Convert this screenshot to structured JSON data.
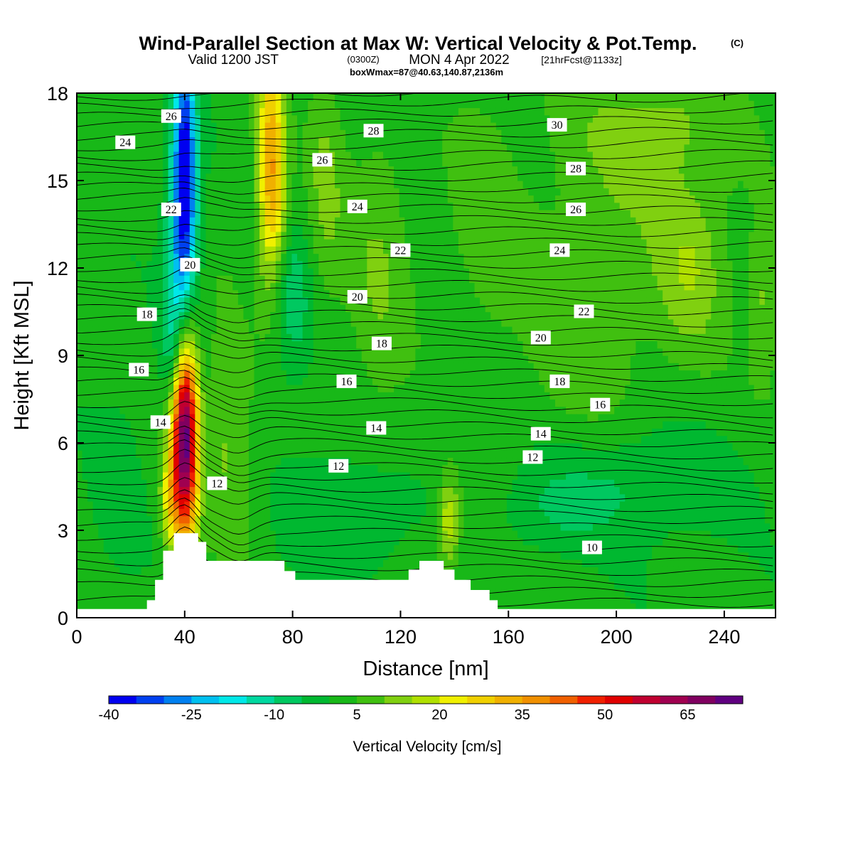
{
  "title": {
    "main": "Wind-Parallel Section at Max W: Vertical Velocity & Pot.Temp.",
    "copyright": "(C)",
    "valid_prefix": "Valid 1200 JST",
    "valid_utc": "(0300Z)",
    "valid_date": "MON 4 Apr 2022",
    "forecast": "[21hrFcst@1133z]",
    "box": "boxWmax=87@40.63,140.87,2136m"
  },
  "chart_data": {
    "type": "heatmap",
    "xlabel": "Distance [nm]",
    "ylabel": "Height [Kft MSL]",
    "xlim": [
      0,
      259
    ],
    "ylim": [
      0,
      18
    ],
    "x_ticks": [
      0,
      40,
      80,
      120,
      160,
      200,
      240
    ],
    "y_ticks": [
      0,
      3,
      6,
      9,
      12,
      15,
      18
    ],
    "colorbar": {
      "title": "Vertical Velocity [cm/s]",
      "levels_min": -40,
      "levels_step": 5,
      "tick_labels": [
        "-40",
        "-25",
        "-10",
        "5",
        "20",
        "35",
        "50",
        "65"
      ],
      "tick_values": [
        -40,
        -25,
        -10,
        5,
        20,
        35,
        50,
        65
      ],
      "colors": [
        "#0000f0",
        "#0040f0",
        "#0080f0",
        "#00c0f0",
        "#00e8e8",
        "#00d8a0",
        "#00c860",
        "#00b830",
        "#18b818",
        "#40c010",
        "#80d010",
        "#b0e000",
        "#f0f000",
        "#f0d000",
        "#f0b000",
        "#f09000",
        "#f06000",
        "#f02000",
        "#e00000",
        "#c00030",
        "#a00050",
        "#800060",
        "#600080"
      ]
    },
    "terrain": [
      [
        0,
        0.3
      ],
      [
        26,
        0.3
      ],
      [
        26,
        0.6
      ],
      [
        29,
        0.6
      ],
      [
        29,
        1.3
      ],
      [
        32,
        1.3
      ],
      [
        32,
        2.3
      ],
      [
        36,
        2.3
      ],
      [
        36,
        2.9
      ],
      [
        45,
        2.9
      ],
      [
        45,
        2.6
      ],
      [
        48,
        2.6
      ],
      [
        48,
        1.95
      ],
      [
        77,
        1.95
      ],
      [
        77,
        1.6
      ],
      [
        81,
        1.6
      ],
      [
        81,
        1.3
      ],
      [
        123,
        1.3
      ],
      [
        123,
        1.65
      ],
      [
        127,
        1.65
      ],
      [
        127,
        1.95
      ],
      [
        136,
        1.95
      ],
      [
        136,
        1.65
      ],
      [
        140,
        1.65
      ],
      [
        140,
        1.3
      ],
      [
        146,
        1.3
      ],
      [
        146,
        0.95
      ],
      [
        153,
        0.95
      ],
      [
        153,
        0.6
      ],
      [
        156,
        0.6
      ],
      [
        156,
        0.3
      ],
      [
        259,
        0.3
      ]
    ],
    "features": [
      {
        "x": 40,
        "y": 6.2,
        "sx": 3.5,
        "sy": 2.6,
        "w": 72
      },
      {
        "x": 34,
        "y": 4.0,
        "sx": 2.5,
        "sy": 1.2,
        "w": 15
      },
      {
        "x": 72,
        "y": 16.5,
        "sx": 3.5,
        "sy": 3.0,
        "w": 25
      },
      {
        "x": 73,
        "y": 14.0,
        "sx": 4.0,
        "sy": 2.0,
        "w": 14
      },
      {
        "x": 138,
        "y": 3.3,
        "sx": 3.0,
        "sy": 1.1,
        "w": 18
      },
      {
        "x": 40,
        "y": 16.0,
        "sx": 3.0,
        "sy": 2.8,
        "w": -35
      },
      {
        "x": 39,
        "y": 12.5,
        "sx": 4.0,
        "sy": 2.5,
        "w": -22
      },
      {
        "x": 36,
        "y": 9.0,
        "sx": 3.0,
        "sy": 1.5,
        "w": -14
      },
      {
        "x": 80,
        "y": 11.0,
        "sx": 5.0,
        "sy": 2.0,
        "w": -10
      },
      {
        "x": 205,
        "y": 4.6,
        "sx": 25.0,
        "sy": 1.4,
        "w": -8
      },
      {
        "x": 175,
        "y": 3.6,
        "sx": 12.0,
        "sy": 1.0,
        "w": -5
      },
      {
        "x": 95,
        "y": 3.8,
        "sx": 12.0,
        "sy": 1.5,
        "w": -6
      },
      {
        "x": 110,
        "y": 3.2,
        "sx": 8.0,
        "sy": 1.2,
        "w": -5
      },
      {
        "x": 15,
        "y": 4.5,
        "sx": 6.0,
        "sy": 2.0,
        "w": -5
      },
      {
        "x": 112,
        "y": 12.0,
        "sx": 9.0,
        "sy": 4.0,
        "w": 8
      },
      {
        "x": 92,
        "y": 15.0,
        "sx": 5.0,
        "sy": 3.0,
        "w": 9
      },
      {
        "x": 215,
        "y": 17.0,
        "sx": 20.0,
        "sy": 1.5,
        "w": 7
      },
      {
        "x": 205,
        "y": 13.5,
        "sx": 30.0,
        "sy": 4.0,
        "w": 6
      },
      {
        "x": 228,
        "y": 12.0,
        "sx": 8.0,
        "sy": 2.0,
        "w": 9
      },
      {
        "x": 185,
        "y": 9.0,
        "sx": 15.0,
        "sy": 3.0,
        "w": 4
      },
      {
        "x": 54,
        "y": 7.0,
        "sx": 4.0,
        "sy": 3.0,
        "w": 6
      },
      {
        "x": 60,
        "y": 5.5,
        "sx": 6.0,
        "sy": 3.0,
        "w": 6
      },
      {
        "x": 150,
        "y": 14.0,
        "sx": 10.0,
        "sy": 4.0,
        "w": 5
      },
      {
        "x": 255,
        "y": 11.0,
        "sx": 4.0,
        "sy": 2.0,
        "w": 9
      }
    ],
    "contour_labels": [
      {
        "text": "26",
        "x": 35,
        "y": 17.2
      },
      {
        "text": "24",
        "x": 18,
        "y": 16.3
      },
      {
        "text": "22",
        "x": 35,
        "y": 14.0
      },
      {
        "text": "20",
        "x": 42,
        "y": 12.1
      },
      {
        "text": "18",
        "x": 26,
        "y": 10.4
      },
      {
        "text": "16",
        "x": 23,
        "y": 8.5
      },
      {
        "text": "14",
        "x": 31,
        "y": 6.7
      },
      {
        "text": "12",
        "x": 52,
        "y": 4.6
      },
      {
        "text": "28",
        "x": 110,
        "y": 16.7
      },
      {
        "text": "26",
        "x": 91,
        "y": 15.7
      },
      {
        "text": "24",
        "x": 104,
        "y": 14.1
      },
      {
        "text": "22",
        "x": 120,
        "y": 12.6
      },
      {
        "text": "20",
        "x": 104,
        "y": 11.0
      },
      {
        "text": "18",
        "x": 113,
        "y": 9.4
      },
      {
        "text": "16",
        "x": 100,
        "y": 8.1
      },
      {
        "text": "14",
        "x": 111,
        "y": 6.5
      },
      {
        "text": "12",
        "x": 97,
        "y": 5.2
      },
      {
        "text": "30",
        "x": 178,
        "y": 16.9
      },
      {
        "text": "28",
        "x": 185,
        "y": 15.4
      },
      {
        "text": "26",
        "x": 185,
        "y": 14.0
      },
      {
        "text": "24",
        "x": 179,
        "y": 12.6
      },
      {
        "text": "22",
        "x": 188,
        "y": 10.5
      },
      {
        "text": "20",
        "x": 172,
        "y": 9.6
      },
      {
        "text": "18",
        "x": 179,
        "y": 8.1
      },
      {
        "text": "16",
        "x": 194,
        "y": 7.3
      },
      {
        "text": "14",
        "x": 172,
        "y": 6.3
      },
      {
        "text": "12",
        "x": 169,
        "y": 5.5
      },
      {
        "text": "10",
        "x": 191,
        "y": 2.4
      }
    ]
  }
}
